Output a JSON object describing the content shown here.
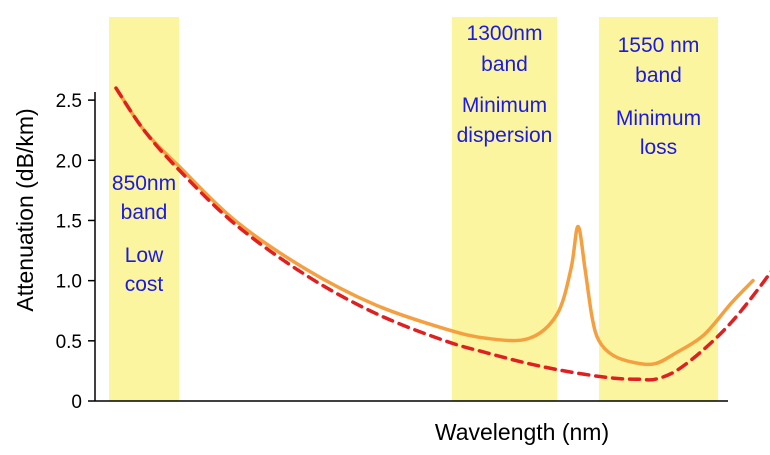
{
  "chart_data": {
    "type": "line",
    "title": "",
    "xlabel": "Wavelength (nm)",
    "ylabel": "Attenuation (dB/km)",
    "ylim": [
      0,
      2.8
    ],
    "y_ticks": [
      "0",
      "0.5",
      "1.0",
      "1.5",
      "2.0",
      "2.5"
    ],
    "y_tick_values": [
      0,
      0.5,
      1.0,
      1.5,
      2.0,
      2.5
    ],
    "grid": false,
    "legend": "none",
    "xlim": [
      750,
      1700
    ],
    "bands": [
      {
        "id": "band-850",
        "range": [
          770,
          870
        ],
        "lines": [
          "850nm",
          "band",
          "Low",
          "cost"
        ]
      },
      {
        "id": "band-1300",
        "range": [
          1260,
          1410
        ],
        "lines": [
          "1300nm",
          "band",
          "Minimum",
          "dispersion"
        ]
      },
      {
        "id": "band-1550",
        "range": [
          1470,
          1640
        ],
        "lines": [
          "1550 nm",
          "band",
          "Minimum",
          "loss"
        ]
      }
    ],
    "series": [
      {
        "style": "solid",
        "color": "#f5a040",
        "x": [
          780,
          820,
          870,
          950,
          1050,
          1150,
          1250,
          1310,
          1370,
          1410,
          1430,
          1440,
          1450,
          1460,
          1470,
          1490,
          1520,
          1550,
          1580,
          1620,
          1660,
          1690
        ],
        "y": [
          2.6,
          2.25,
          1.95,
          1.5,
          1.1,
          0.8,
          0.6,
          0.52,
          0.52,
          0.72,
          1.1,
          1.45,
          1.1,
          0.7,
          0.5,
          0.38,
          0.32,
          0.31,
          0.4,
          0.55,
          0.82,
          1.0
        ]
      },
      {
        "style": "dashed",
        "color": "#e02020",
        "x": [
          780,
          820,
          870,
          950,
          1050,
          1150,
          1250,
          1310,
          1370,
          1430,
          1490,
          1530,
          1550,
          1580,
          1620,
          1660,
          1700,
          1740
        ],
        "y": [
          2.6,
          2.25,
          1.92,
          1.47,
          1.05,
          0.73,
          0.5,
          0.4,
          0.31,
          0.24,
          0.19,
          0.18,
          0.18,
          0.25,
          0.43,
          0.66,
          0.95,
          1.27
        ]
      }
    ]
  },
  "colors": {
    "band": "#fbf5a0",
    "axis": "#000000",
    "label_text": "#1a1ae0"
  }
}
